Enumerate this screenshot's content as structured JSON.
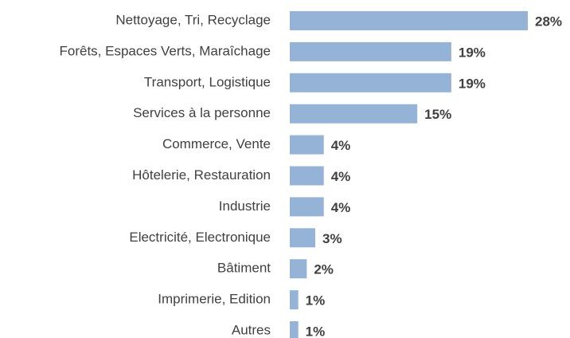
{
  "chart_data": {
    "type": "bar",
    "orientation": "horizontal",
    "categories": [
      "Nettoyage, Tri, Recyclage",
      "Forêts, Espaces Verts, Maraîchage",
      "Transport, Logistique",
      "Services à la personne",
      "Commerce, Vente",
      "Hôtelerie, Restauration",
      "Industrie",
      "Electricité, Electronique",
      "Bâtiment",
      "Imprimerie, Edition",
      "Autres"
    ],
    "values": [
      28,
      19,
      19,
      15,
      4,
      4,
      4,
      3,
      2,
      1,
      1
    ],
    "value_labels": [
      "28%",
      "19%",
      "19%",
      "15%",
      "4%",
      "4%",
      "4%",
      "3%",
      "2%",
      "1%",
      "1%"
    ],
    "color": "#95b3d7"
  }
}
